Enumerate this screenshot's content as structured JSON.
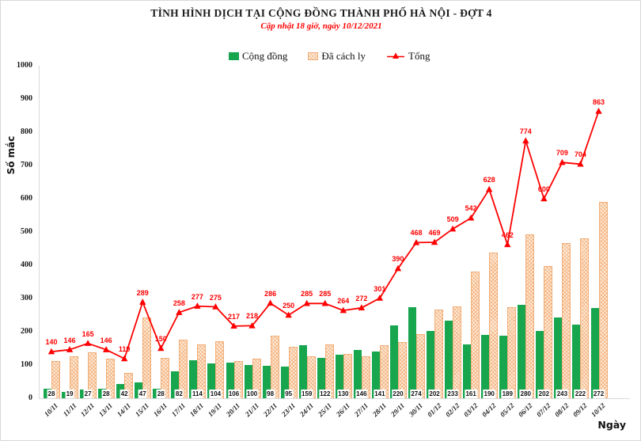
{
  "chart_data": {
    "type": "bar",
    "title": "TÌNH HÌNH DỊCH TẠI CỘNG ĐỒNG THÀNH PHỐ HÀ NỘI - ĐỢT 4",
    "subtitle": "Cập nhật 18 giờ, ngày 10/12/2021",
    "xlabel": "Ngày",
    "ylabel": "Số mắc",
    "ylim": [
      0,
      1000
    ],
    "yticks": [
      0,
      100,
      200,
      300,
      400,
      500,
      600,
      700,
      800,
      900,
      1000
    ],
    "grid": false,
    "legend_position": "top",
    "categories": [
      "10/11",
      "11/11",
      "12/11",
      "13/11",
      "14/11",
      "15/11",
      "16/11",
      "17/11",
      "18/11",
      "19/11",
      "20/11",
      "21/11",
      "22/11",
      "23/11",
      "24/11",
      "25/11",
      "26/11",
      "27/11",
      "28/11",
      "29/11",
      "30/11",
      "01/12",
      "02/12",
      "03/12",
      "04/12",
      "05/12",
      "06/12",
      "07/12",
      "08/12",
      "09/12",
      "10/12"
    ],
    "series": [
      {
        "name": "Cộng đồng",
        "kind": "bar",
        "color": "#17a54e",
        "labels_shown": "at-baseline",
        "values": [
          28,
          19,
          27,
          28,
          42,
          47,
          28,
          82,
          114,
          104,
          106,
          100,
          98,
          95,
          159,
          122,
          130,
          146,
          141,
          220,
          274,
          202,
          233,
          161,
          190,
          189,
          280,
          202,
          243,
          222,
          272
        ]
      },
      {
        "name": "Đã cách ly",
        "kind": "bar",
        "pattern": "diagonal-crosshatch",
        "pattern_base_color": "#fdeedd",
        "pattern_hatch_color": "#f29654",
        "border_color": "#f0ae78",
        "labels_shown": "none",
        "values": [
          112,
          127,
          138,
          118,
          77,
          242,
          122,
          176,
          163,
          171,
          111,
          118,
          188,
          155,
          126,
          163,
          134,
          126,
          160,
          170,
          194,
          267,
          276,
          381,
          438,
          273,
          494,
          398,
          466,
          482,
          591
        ]
      },
      {
        "name": "Tổng",
        "kind": "line",
        "color": "#fe0000",
        "marker": "triangle-up",
        "labels_shown": "above-points",
        "values": [
          140,
          146,
          165,
          146,
          119,
          289,
          150,
          258,
          277,
          275,
          217,
          218,
          286,
          250,
          285,
          285,
          264,
          272,
          301,
          390,
          468,
          469,
          509,
          542,
          628,
          462,
          774,
          600,
          709,
          704,
          863
        ]
      }
    ]
  }
}
